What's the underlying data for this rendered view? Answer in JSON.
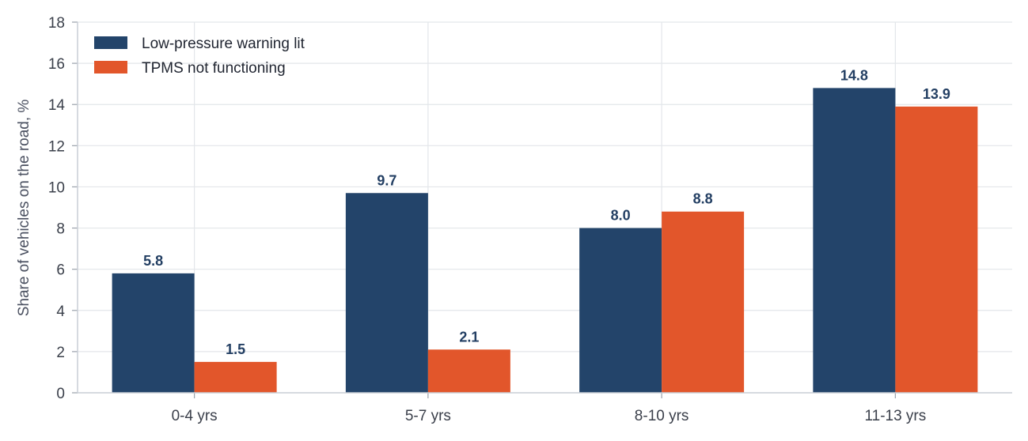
{
  "chart_data": {
    "type": "bar",
    "title": "",
    "xlabel": "",
    "ylabel": "Share of vehicles on the road, %",
    "ylim": [
      0,
      18
    ],
    "yticks": [
      0,
      2,
      4,
      6,
      8,
      10,
      12,
      14,
      16,
      18
    ],
    "grid": true,
    "legend_position": "top-left",
    "categories": [
      "0-4 yrs",
      "5-7 yrs",
      "8-10 yrs",
      "11-13 yrs"
    ],
    "series": [
      {
        "name": "Low-pressure warning lit",
        "color": "#23446a",
        "values": [
          5.8,
          9.7,
          8.0,
          14.8
        ],
        "labels": [
          "5.8",
          "9.7",
          "8.0",
          "14.8"
        ]
      },
      {
        "name": "TPMS not functioning",
        "color": "#e2562b",
        "values": [
          1.5,
          2.1,
          8.8,
          13.9
        ],
        "labels": [
          "1.5",
          "2.1",
          "8.8",
          "13.9"
        ]
      }
    ]
  }
}
